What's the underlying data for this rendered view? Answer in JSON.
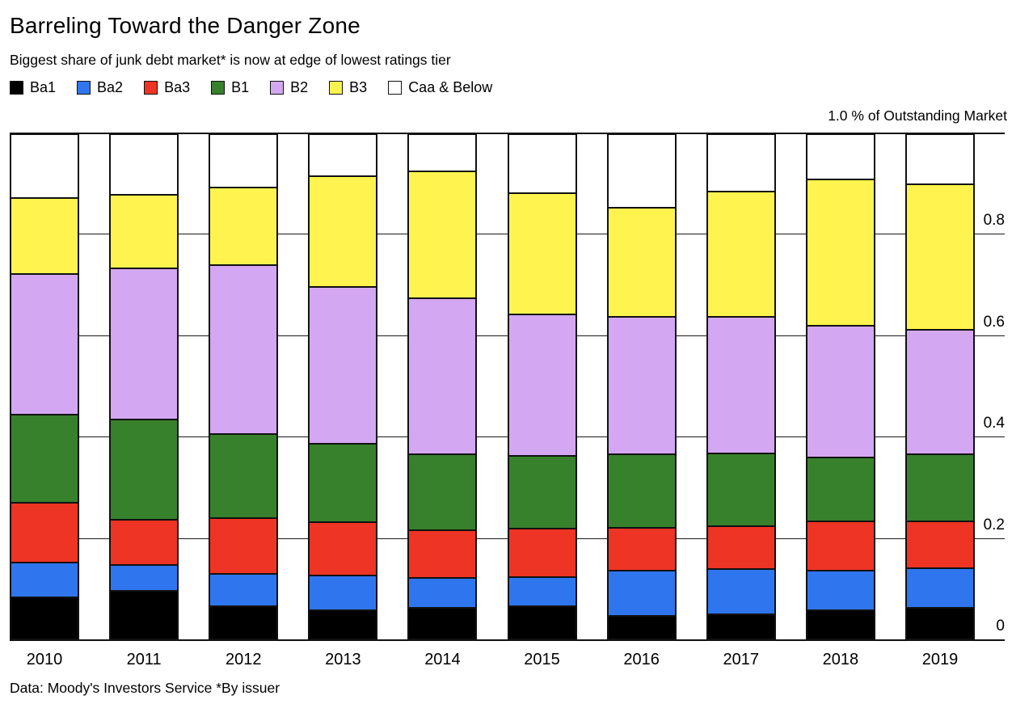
{
  "title": "Barreling Toward the Danger Zone",
  "subtitle": "Biggest share of junk debt market* is now at edge of lowest ratings tier",
  "axis_top_label": "1.0 % of Outstanding Market",
  "source_note": "Data: Moody's Investors Service *By issuer",
  "colors": {
    "background": "#ffffff",
    "axis_line": "#111111",
    "gridline": "#1a1a1a",
    "text": "#000000"
  },
  "chart_data": {
    "type": "bar",
    "stacked": true,
    "normalized_to": 1.0,
    "title": "Barreling Toward the Danger Zone",
    "xlabel": "",
    "ylabel": "% of Outstanding Market",
    "ylim": [
      0,
      1.0
    ],
    "grid": true,
    "legend_position": "top",
    "categories": [
      "2010",
      "2011",
      "2012",
      "2013",
      "2014",
      "2015",
      "2016",
      "2017",
      "2018",
      "2019"
    ],
    "series": [
      {
        "name": "Ba1",
        "color": "#000000",
        "values": [
          0.083,
          0.096,
          0.065,
          0.058,
          0.062,
          0.065,
          0.047,
          0.05,
          0.058,
          0.062
        ]
      },
      {
        "name": "Ba2",
        "color": "#2f76ee",
        "values": [
          0.07,
          0.051,
          0.065,
          0.069,
          0.06,
          0.059,
          0.09,
          0.09,
          0.079,
          0.08
        ]
      },
      {
        "name": "Ba3",
        "color": "#ee3424",
        "values": [
          0.119,
          0.091,
          0.11,
          0.106,
          0.094,
          0.096,
          0.085,
          0.085,
          0.098,
          0.093
        ]
      },
      {
        "name": "B1",
        "color": "#37812c",
        "values": [
          0.175,
          0.199,
          0.168,
          0.155,
          0.151,
          0.144,
          0.145,
          0.144,
          0.126,
          0.132
        ]
      },
      {
        "name": "B2",
        "color": "#d3a7f1",
        "values": [
          0.278,
          0.299,
          0.335,
          0.312,
          0.31,
          0.282,
          0.273,
          0.271,
          0.262,
          0.248
        ]
      },
      {
        "name": "B3",
        "color": "#fff44f",
        "values": [
          0.152,
          0.147,
          0.155,
          0.219,
          0.252,
          0.24,
          0.217,
          0.249,
          0.29,
          0.289
        ]
      },
      {
        "name": "Caa & Below",
        "color": "#ffffff",
        "values": [
          0.123,
          0.117,
          0.102,
          0.081,
          0.071,
          0.114,
          0.143,
          0.111,
          0.087,
          0.096
        ]
      }
    ],
    "yticks": [
      {
        "v": 0.0,
        "label": "0"
      },
      {
        "v": 0.2,
        "label": "0.2"
      },
      {
        "v": 0.4,
        "label": "0.4"
      },
      {
        "v": 0.6,
        "label": "0.6"
      },
      {
        "v": 0.8,
        "label": "0.8"
      },
      {
        "v": 1.0,
        "label": null
      }
    ]
  }
}
